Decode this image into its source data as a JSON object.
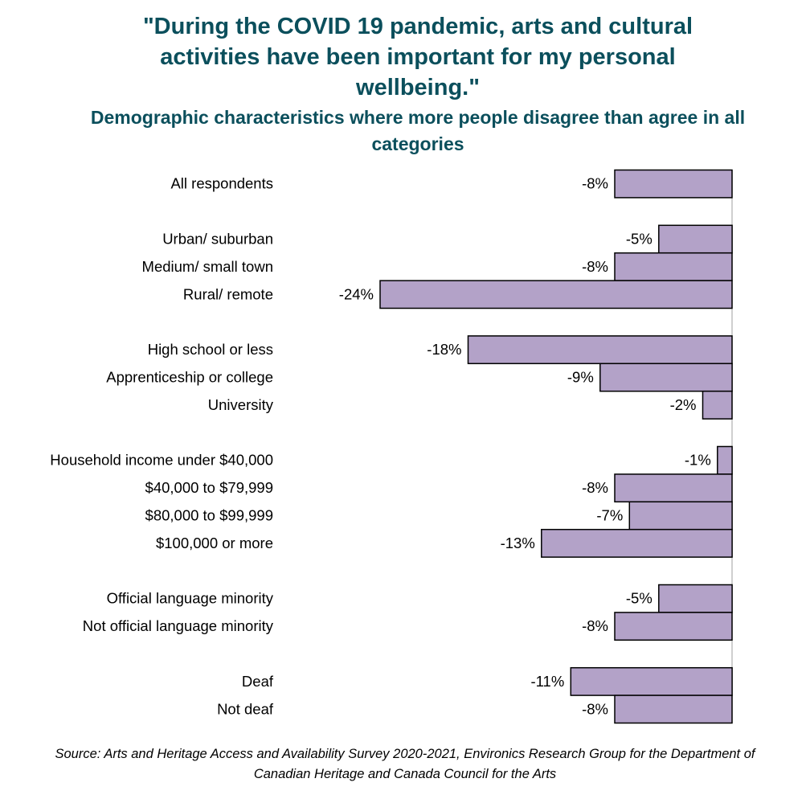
{
  "title": "\"During the COVID 19 pandemic, arts and cultural activities have been important for my personal wellbeing.\"",
  "subtitle": "Demographic characteristics where more people disagree than agree in all categories",
  "source": "Source: Arts and Heritage Access and Availability Survey 2020-2021, Environics Research Group for the Department of Canadian Heritage and Canada Council for the Arts",
  "colors": {
    "bar_fill": "#b3a2c8",
    "bar_stroke": "#000000",
    "title": "#0b4f5c"
  },
  "chart_data": {
    "type": "bar",
    "orientation": "horizontal",
    "title": "\"During the COVID 19 pandemic, arts and cultural activities have been important for my personal wellbeing.\"",
    "subtitle": "Demographic characteristics where more people disagree than agree in all categories",
    "groups": [
      {
        "categories": [
          "All respondents"
        ],
        "values": [
          -8
        ]
      },
      {
        "categories": [
          "Urban/ suburban",
          "Medium/ small town",
          "Rural/ remote"
        ],
        "values": [
          -5,
          -8,
          -24
        ]
      },
      {
        "categories": [
          "High school or less",
          "Apprenticeship or college",
          "University"
        ],
        "values": [
          -18,
          -9,
          -2
        ]
      },
      {
        "categories": [
          "Household income under $40,000",
          "$40,000 to $79,999",
          "$80,000 to $99,999",
          "$100,000 or more"
        ],
        "values": [
          -1,
          -8,
          -7,
          -13
        ]
      },
      {
        "categories": [
          "Official language minority",
          "Not official language minority"
        ],
        "values": [
          -5,
          -8
        ]
      },
      {
        "categories": [
          "Deaf",
          "Not deaf"
        ],
        "values": [
          -11,
          -8
        ]
      }
    ],
    "value_labels": {
      "All respondents": "-8%",
      "Urban/ suburban": "-5%",
      "Medium/ small town": "-8%",
      "Rural/ remote": "-24%",
      "High school or less": "-18%",
      "Apprenticeship or college": "-9%",
      "University": "-2%",
      "Household income under $40,000": "-1%",
      "$40,000 to $79,999": "-8%",
      "$80,000 to $99,999": "-7%",
      "$100,000 or more": "-13%",
      "Official language minority": "-5%",
      "Not official language minority": "-8%",
      "Deaf": "-11%",
      "Not deaf": "-8%"
    },
    "unit": "%",
    "grid": false,
    "legend": "none"
  }
}
